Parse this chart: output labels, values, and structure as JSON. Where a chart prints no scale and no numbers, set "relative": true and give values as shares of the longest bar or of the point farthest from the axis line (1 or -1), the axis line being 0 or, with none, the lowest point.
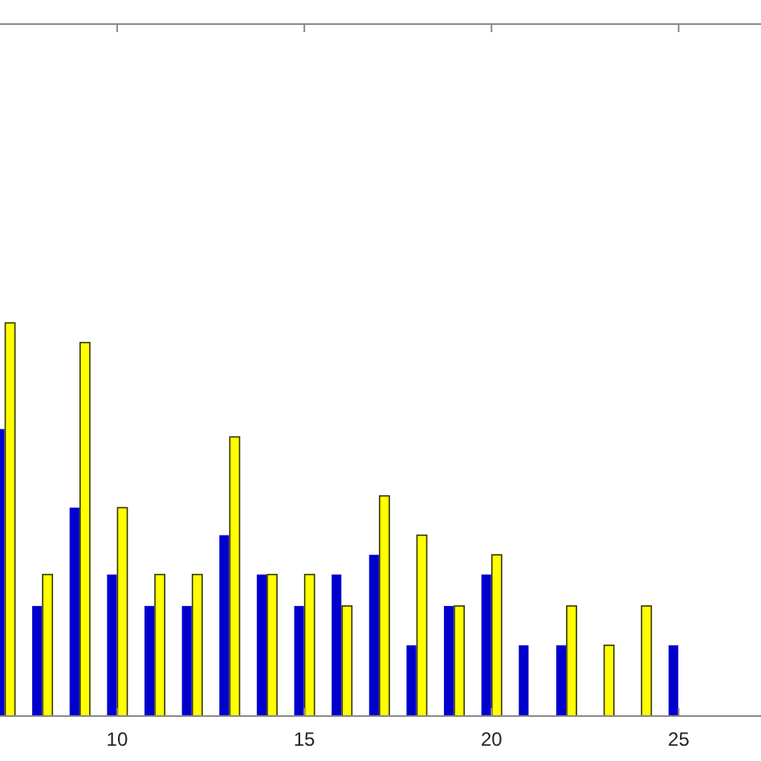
{
  "chart_data": {
    "type": "bar",
    "relative": true,
    "x": [
      7,
      8,
      9,
      10,
      11,
      12,
      13,
      14,
      15,
      16,
      17,
      18,
      19,
      20,
      21,
      22,
      23,
      24,
      25
    ],
    "xlim": [
      6.87,
      27.2
    ],
    "xticks": [
      10,
      15,
      20,
      25
    ],
    "series": [
      {
        "color": "#0000cc",
        "values": [
          0.73,
          0.28,
          0.53,
          0.36,
          0.28,
          0.28,
          0.46,
          0.36,
          0.28,
          0.36,
          0.41,
          0.18,
          0.28,
          0.36,
          0.18,
          0.18,
          null,
          null,
          0.18
        ]
      },
      {
        "color": "#ffff00",
        "values": [
          1,
          0.36,
          0.95,
          0.53,
          0.36,
          0.36,
          0.71,
          0.36,
          0.36,
          0.28,
          0.56,
          0.46,
          0.28,
          0.41,
          null,
          0.28,
          0.18,
          0.28,
          null
        ]
      }
    ],
    "grid": false
  }
}
